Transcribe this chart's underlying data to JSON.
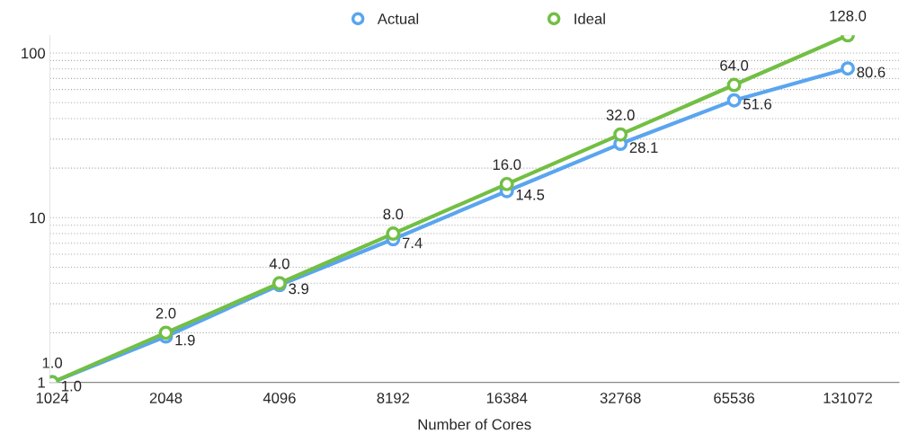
{
  "chart_data": {
    "type": "line",
    "xlabel": "Number of Cores",
    "categories": [
      "1024",
      "2048",
      "4096",
      "8192",
      "16384",
      "32768",
      "65536",
      "131072"
    ],
    "series": [
      {
        "name": "Actual",
        "color": "#5aa5ef",
        "values": [
          1.0,
          1.9,
          3.9,
          7.4,
          14.5,
          28.1,
          51.6,
          80.6
        ],
        "value_labels": [
          "1.0",
          "1.9",
          "3.9",
          "7.4",
          "14.5",
          "28.1",
          "51.6",
          "80.6"
        ]
      },
      {
        "name": "Ideal",
        "color": "#72bf44",
        "values": [
          1.0,
          2.0,
          4.0,
          8.0,
          16.0,
          32.0,
          64.0,
          128.0
        ],
        "value_labels": [
          "1.0",
          "2.0",
          "4.0",
          "8.0",
          "16.0",
          "32.0",
          "64.0",
          "128.0"
        ]
      }
    ],
    "log": "y",
    "ylim": [
      1,
      128
    ],
    "yticks": [
      1,
      10,
      100
    ],
    "grid": "y",
    "legend": "top",
    "marker": "circle",
    "line_style": "solid"
  }
}
